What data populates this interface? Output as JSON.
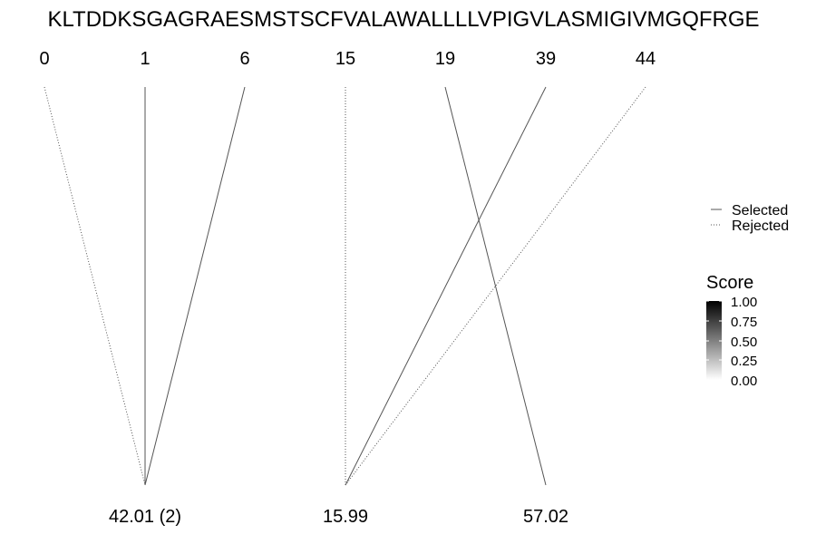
{
  "sequence": "KLTDDKSGAGRAESMSTSCFVALAWALLLLVPIGVLASMIGIVMGQFRGE",
  "top_labels": [
    "0",
    "1",
    "6",
    "15",
    "19",
    "39",
    "44"
  ],
  "bottom_labels": [
    "42.01 (2)",
    "15.99",
    "57.02"
  ],
  "connections": [
    {
      "from": "0",
      "to": "42.01 (2)",
      "status": "rejected"
    },
    {
      "from": "1",
      "to": "42.01 (2)",
      "status": "selected"
    },
    {
      "from": "6",
      "to": "42.01 (2)",
      "status": "selected"
    },
    {
      "from": "15",
      "to": "15.99",
      "status": "rejected"
    },
    {
      "from": "39",
      "to": "15.99",
      "status": "selected"
    },
    {
      "from": "44",
      "to": "15.99",
      "status": "rejected"
    },
    {
      "from": "19",
      "to": "57.02",
      "status": "selected"
    }
  ],
  "legend": {
    "selected_label": "Selected",
    "rejected_label": "Rejected"
  },
  "score_legend": {
    "title": "Score",
    "ticks": [
      "1.00",
      "0.75",
      "0.50",
      "0.25",
      "0.00"
    ],
    "color_high": "#000000",
    "color_low": "#ffffff"
  },
  "colors": {
    "line": "#555555",
    "text": "#000000"
  }
}
